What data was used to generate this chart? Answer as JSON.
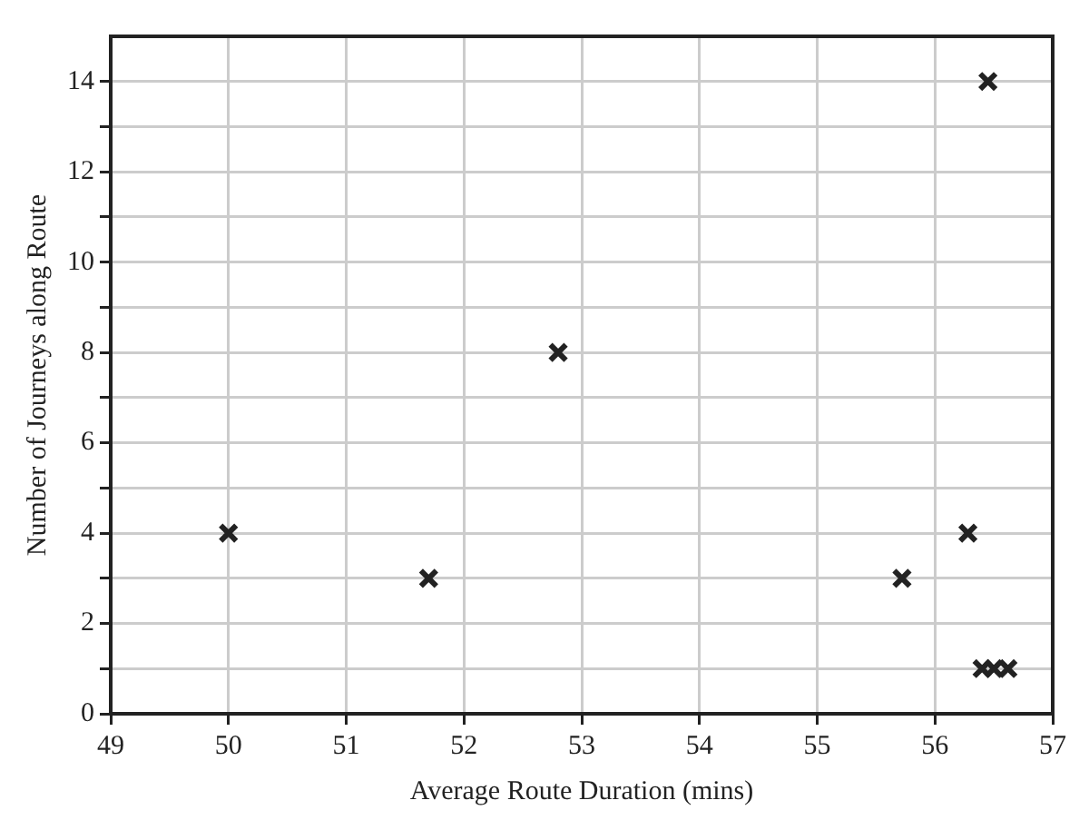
{
  "chart_data": {
    "type": "scatter",
    "xlabel": "Average Route Duration (mins)",
    "ylabel": "Number of Journeys along Route",
    "x": [
      50.0,
      51.7,
      52.8,
      55.72,
      56.28,
      56.45,
      56.4,
      56.5,
      56.62
    ],
    "values": [
      4,
      3,
      8,
      3,
      4,
      14,
      1,
      1,
      1
    ],
    "color": "#222222",
    "marker": "cross",
    "grid": true,
    "xlim": [
      49,
      57
    ],
    "xticks": [
      49,
      50,
      51,
      52,
      53,
      54,
      55,
      56,
      57
    ],
    "ylim": [
      0,
      15
    ],
    "yticks": [
      0,
      {
        "value": 1,
        "label": null
      },
      2,
      {
        "value": 3,
        "label": null
      },
      4,
      {
        "value": 5,
        "label": null
      },
      6,
      {
        "value": 7,
        "label": null
      },
      8,
      {
        "value": 9,
        "label": null
      },
      10,
      {
        "value": 11,
        "label": null
      },
      12,
      {
        "value": 13,
        "label": null
      },
      14
    ]
  }
}
